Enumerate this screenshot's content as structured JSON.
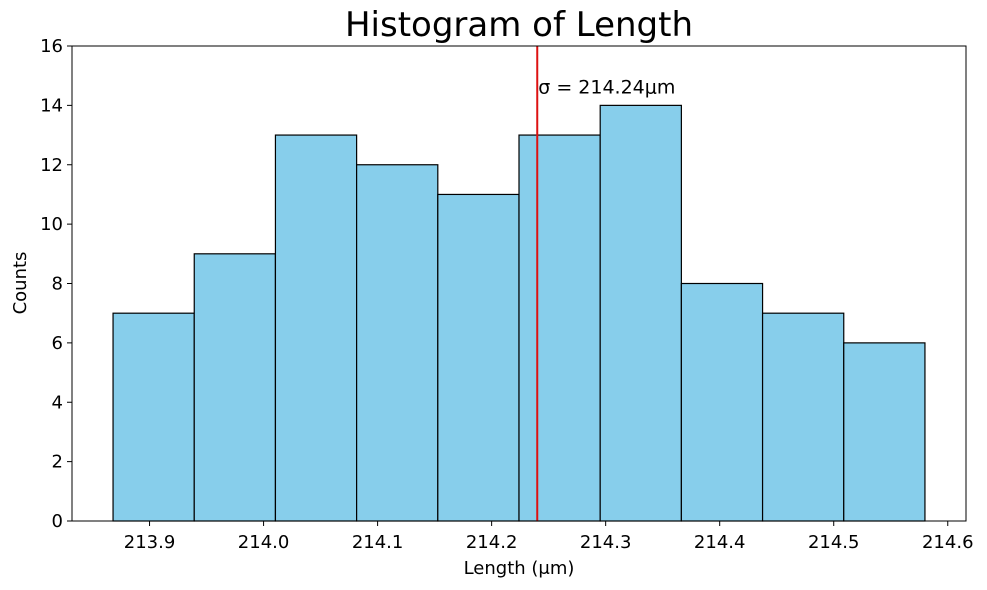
{
  "chart_data": {
    "type": "bar",
    "title": "Histogram of Length",
    "xlabel": "Length (μm)",
    "ylabel": "Counts",
    "bin_edges": [
      213.868,
      213.9392,
      214.0104,
      214.0816,
      214.1528,
      214.224,
      214.2952,
      214.3664,
      214.4376,
      214.5088,
      214.58
    ],
    "values": [
      7,
      9,
      13,
      12,
      11,
      13,
      14,
      8,
      7,
      6
    ],
    "xlim": [
      213.832,
      214.616
    ],
    "ylim": [
      0,
      16
    ],
    "xticks": [
      213.9,
      214.0,
      214.1,
      214.2,
      214.3,
      214.4,
      214.5,
      214.6
    ],
    "xtick_labels": [
      "213.9",
      "214.0",
      "214.1",
      "214.2",
      "214.3",
      "214.4",
      "214.5",
      "214.6"
    ],
    "yticks": [
      0,
      2,
      4,
      6,
      8,
      10,
      12,
      14,
      16
    ],
    "ytick_labels": [
      "0",
      "2",
      "4",
      "6",
      "8",
      "10",
      "12",
      "14",
      "16"
    ],
    "bar_color": "#87ceeb",
    "bar_edge_color": "#000000",
    "vline": {
      "x": 214.24,
      "color": "#dd1111"
    },
    "annotation": {
      "text": "σ = 214.24μm",
      "x": 214.24,
      "y": 14.6
    },
    "grid": false
  }
}
